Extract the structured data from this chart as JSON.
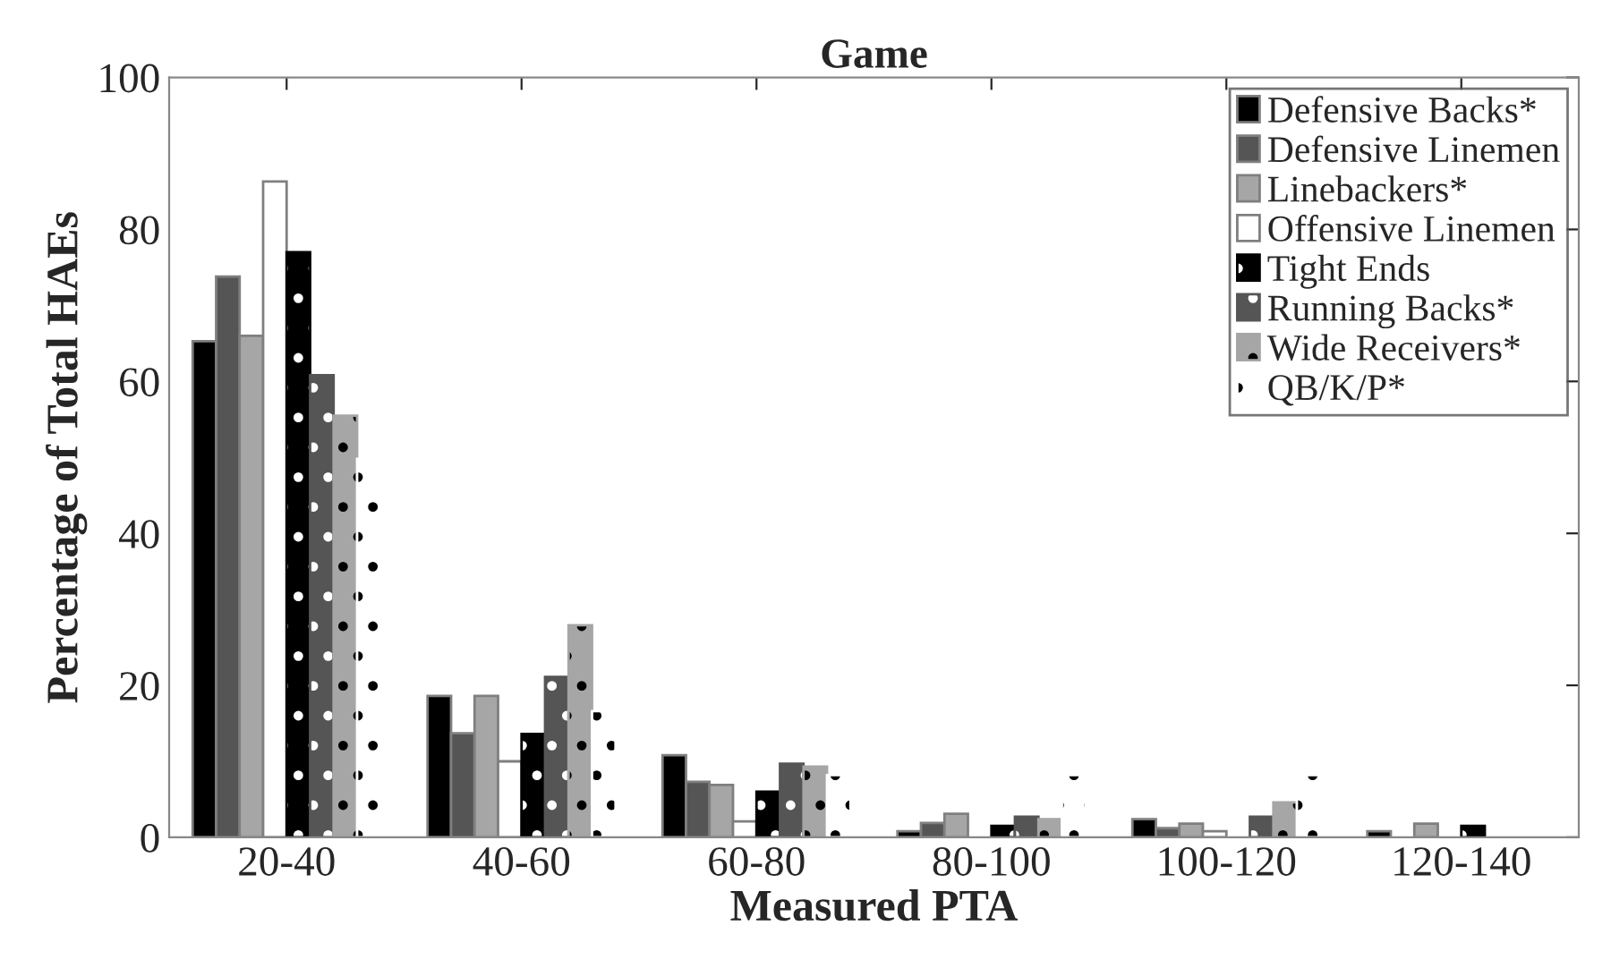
{
  "chart_data": {
    "type": "bar",
    "title": "Game",
    "xlabel": "Measured PTA",
    "ylabel": "Percentage of Total HAEs",
    "categories": [
      "20-40",
      "40-60",
      "60-80",
      "80-100",
      "100-120",
      "120-140"
    ],
    "series": [
      {
        "name": "Defensive Backs*",
        "color": "#000000",
        "values": [
          65.3,
          18.6,
          10.8,
          0.8,
          2.4,
          0.8
        ]
      },
      {
        "name": "Defensive Linemen",
        "color": "#555555",
        "values": [
          73.8,
          13.7,
          7.3,
          1.9,
          1.2,
          0
        ]
      },
      {
        "name": "Linebackers*",
        "color": "#a6a6a6",
        "values": [
          66.0,
          18.6,
          6.9,
          3.1,
          1.8,
          1.8
        ]
      },
      {
        "name": "Offensive Linemen",
        "color": "#ffffff",
        "values": [
          86.3,
          10.0,
          2.1,
          0,
          0.8,
          0
        ]
      },
      {
        "name": "Tight Ends",
        "color": "#000000",
        "values": [
          77.0,
          13.6,
          6.0,
          1.5,
          0,
          1.5
        ]
      },
      {
        "name": "Running Backs*",
        "color": "#555555",
        "values": [
          60.8,
          21.1,
          9.7,
          2.7,
          2.7,
          0
        ]
      },
      {
        "name": "Wide Receivers*",
        "color": "#a6a6a6",
        "values": [
          55.5,
          27.9,
          9.3,
          2.4,
          4.6,
          0
        ]
      },
      {
        "name": "QB/K/P*",
        "color": "#ffffff",
        "values": [
          49.8,
          16.6,
          8.2,
          8.2,
          8.2,
          0
        ]
      }
    ],
    "ylim": [
      0,
      100
    ],
    "yticks": [
      0,
      20,
      40,
      60,
      80,
      100
    ],
    "legend": "top right"
  }
}
